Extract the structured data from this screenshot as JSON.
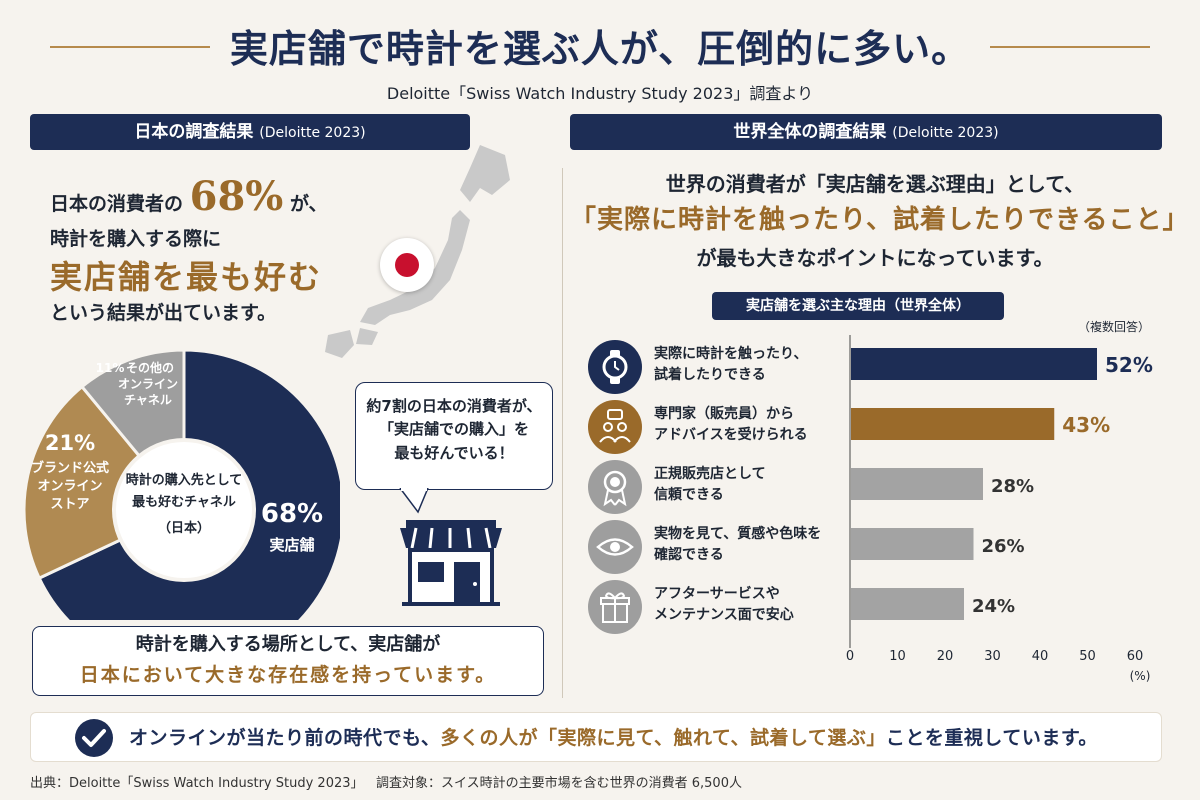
{
  "header": {
    "title": "実店舗で時計を選ぶ人が、圧倒的に多い。",
    "subtitle": "Deloitte「Swiss Watch Industry Study 2023」調査より"
  },
  "japan": {
    "section_title": "日本の調査結果",
    "section_title_src": "(Deloitte 2023)",
    "intro_l1_pre": "日本の消費者の",
    "intro_l1_num": "68%",
    "intro_l1_post": "が、",
    "intro_l2": "時計を購入する際に",
    "intro_l3": "実店舗を最も好む",
    "intro_l4": "という結果が出ています。",
    "callout_l1": "約7割の日本の消費者が、",
    "callout_l2": "「実店舗での購入」を",
    "callout_l3": "最も好んでいる！",
    "note_l1": "時計を購入する場所として、実店舗が",
    "note_l2": "日本において大きな存在感を持っています。"
  },
  "world": {
    "section_title": "世界全体の調査結果",
    "section_title_src": "(Deloitte 2023)",
    "intro_l1": "世界の消費者が「実店舗を選ぶ理由」として、",
    "intro_l2": "「実際に時計を触ったり、試着したりできること」",
    "intro_l3": "が最も大きなポイントになっています。",
    "chart_title": "実店舗を選ぶ主な理由（世界全体）",
    "note": "（複数回答）",
    "reasons": [
      {
        "l1": "実際に時計を触ったり、",
        "l2": "試着したりできる",
        "icon": "watch-icon",
        "color": "#1d2d55"
      },
      {
        "l1": "専門家（販売員）から",
        "l2": "アドバイスを受けられる",
        "icon": "advisor-icon",
        "color": "#9a6a2a"
      },
      {
        "l1": "正規販売店として",
        "l2": "信頼できる",
        "icon": "award-icon",
        "color": "#9e9e9e"
      },
      {
        "l1": "実物を見て、質感や色味を",
        "l2": "確認できる",
        "icon": "eye-icon",
        "color": "#9e9e9e"
      },
      {
        "l1": "アフターサービスや",
        "l2": "メンテナンス面で安心",
        "icon": "gift-icon",
        "color": "#9e9e9e"
      }
    ]
  },
  "bottom": {
    "message_pre": "オンラインが当たり前の時代でも、",
    "message_mid": "多くの人が「実際に見て、触れて、試着して選ぶ」",
    "message_post": "ことを重視しています。",
    "source": "出典：Deloitte「Swiss Watch Industry Study 2023」",
    "target": "調査対象：スイス時計の主要市場を含む世界の消費者 6,500人"
  },
  "chart_data": [
    {
      "type": "pie",
      "donut": true,
      "center_label_l1": "時計の購入先として",
      "center_label_l2": "最も好むチャネル",
      "center_label_l3": "（日本）",
      "slices": [
        {
          "label": "実店舗",
          "value": 68,
          "value_label": "68%",
          "color": "#1d2d55"
        },
        {
          "label_l1": "ブランド公式",
          "label_l2": "オンライン",
          "label_l3": "ストア",
          "value": 21,
          "value_label": "21%",
          "color": "#b08a52"
        },
        {
          "label_l1": "その他の",
          "label_l2": "オンライン",
          "label_l3": "チャネル",
          "value": 11,
          "value_label": "11%",
          "color": "#9e9e9e"
        }
      ]
    },
    {
      "type": "bar",
      "orientation": "horizontal",
      "values": [
        52,
        43,
        28,
        26,
        24
      ],
      "value_labels": [
        "52%",
        "43%",
        "28%",
        "26%",
        "24%"
      ],
      "colors": [
        "#1d2d55",
        "#9a6a2a",
        "#a3a3a3",
        "#a3a3a3",
        "#a3a3a3"
      ],
      "xlim": [
        0,
        60
      ],
      "xticks": [
        "0",
        "10",
        "20",
        "30",
        "40",
        "50",
        "60"
      ],
      "xunit": "(%)"
    }
  ]
}
